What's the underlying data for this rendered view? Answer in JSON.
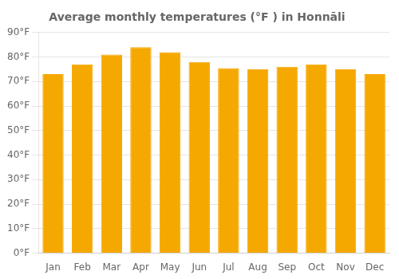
{
  "chart_data": {
    "type": "bar",
    "title": "Average monthly temperatures (°F ) in Honnāli",
    "categories": [
      "Jan",
      "Feb",
      "Mar",
      "Apr",
      "May",
      "Jun",
      "Jul",
      "Aug",
      "Sep",
      "Oct",
      "Nov",
      "Dec"
    ],
    "values": [
      73,
      77,
      81,
      84,
      82,
      78,
      75.5,
      75,
      76,
      77,
      75,
      73
    ],
    "color": "#F5A800",
    "ylim": [
      0,
      90
    ],
    "yticks": [
      {
        "value": 0,
        "label": "0°F"
      },
      {
        "value": 10,
        "label": "10°F"
      },
      {
        "value": 20,
        "label": "20°F"
      },
      {
        "value": 30,
        "label": "30°F"
      },
      {
        "value": 40,
        "label": "40°F"
      },
      {
        "value": 50,
        "label": "50°F"
      },
      {
        "value": 60,
        "label": "60°F"
      },
      {
        "value": 70,
        "label": "70°F"
      },
      {
        "value": 80,
        "label": "80°F"
      },
      {
        "value": 90,
        "label": "90°F"
      }
    ],
    "grid": true
  }
}
